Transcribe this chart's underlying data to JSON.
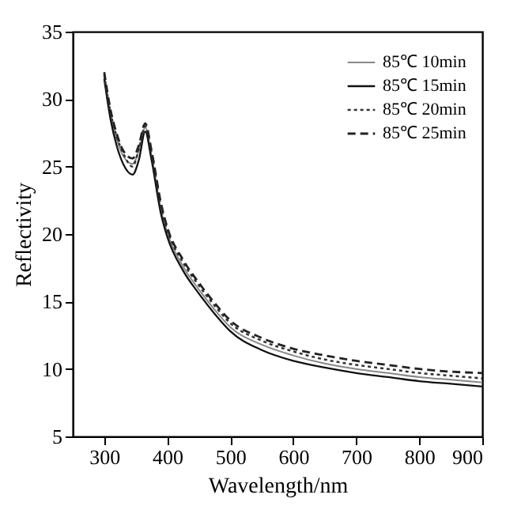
{
  "chart_data": {
    "type": "line",
    "xlabel": "Wavelength/nm",
    "ylabel": "Reflectivity",
    "x": [
      300,
      310,
      320,
      330,
      345,
      355,
      365,
      375,
      390,
      400,
      425,
      450,
      475,
      500,
      550,
      600,
      650,
      700,
      750,
      800,
      850,
      900
    ],
    "series": [
      {
        "name": "85℃ 10min",
        "color": "#888888",
        "line_style": "solid",
        "values": [
          31.6,
          28.8,
          27.0,
          25.8,
          25.2,
          26.2,
          27.9,
          25.8,
          21.8,
          20.1,
          17.6,
          15.9,
          14.4,
          13.1,
          11.8,
          11.0,
          10.4,
          10.0,
          9.7,
          9.4,
          9.2,
          9.0
        ]
      },
      {
        "name": "85℃ 15min",
        "color": "#111111",
        "line_style": "solid",
        "values": [
          31.5,
          28.5,
          26.5,
          25.2,
          24.4,
          25.5,
          27.6,
          25.5,
          21.5,
          19.8,
          17.3,
          15.6,
          14.1,
          12.8,
          11.4,
          10.6,
          10.1,
          9.7,
          9.4,
          9.1,
          8.9,
          8.7
        ]
      },
      {
        "name": "85℃ 20min",
        "color": "#333333",
        "line_style": "dotted",
        "values": [
          31.8,
          29.0,
          27.2,
          26.0,
          25.0,
          26.3,
          28.0,
          26.0,
          22.0,
          20.3,
          17.9,
          16.2,
          14.7,
          13.4,
          12.1,
          11.3,
          10.7,
          10.3,
          10.0,
          9.7,
          9.5,
          9.3
        ]
      },
      {
        "name": "85℃ 25min",
        "color": "#222222",
        "line_style": "dashed",
        "values": [
          32.0,
          29.2,
          27.4,
          26.2,
          25.6,
          26.6,
          28.2,
          26.2,
          22.3,
          20.5,
          18.1,
          16.4,
          14.9,
          13.6,
          12.3,
          11.5,
          11.0,
          10.6,
          10.3,
          10.0,
          9.8,
          9.7
        ]
      }
    ],
    "xlim": [
      250,
      900
    ],
    "xticks": [
      300,
      400,
      500,
      600,
      700,
      800,
      900
    ],
    "ylim": [
      5,
      35
    ],
    "yticks": [
      5,
      10,
      15,
      20,
      25,
      30,
      35
    ],
    "legend": "top right",
    "grid": false
  }
}
